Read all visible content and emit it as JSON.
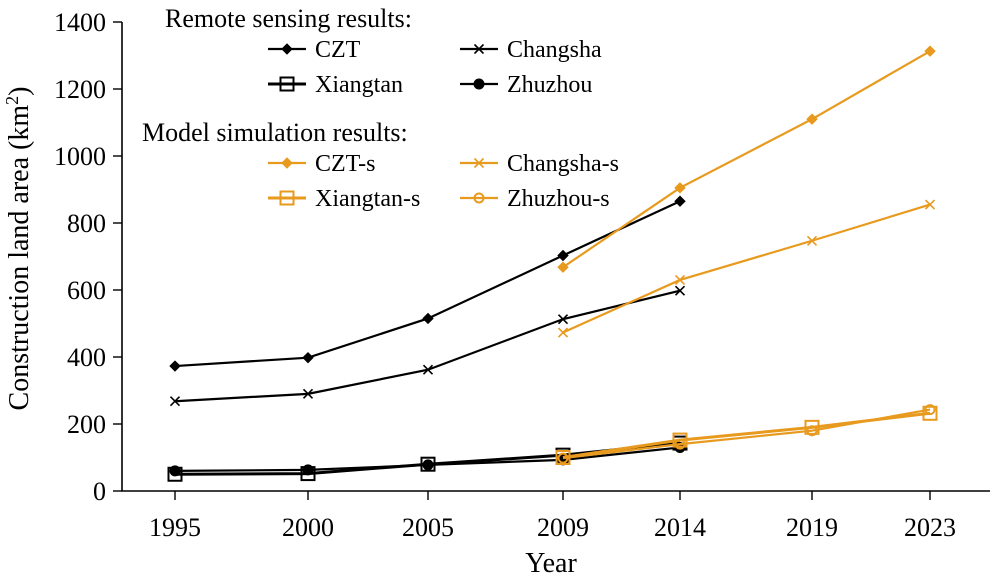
{
  "chart_data": {
    "type": "line",
    "xlabel": "Year",
    "ylabel": "Construction land area (km",
    "ylabel_sup": "2",
    "ylabel_close": ")",
    "ylim": [
      0,
      1400
    ],
    "yticks": [
      0,
      200,
      400,
      600,
      800,
      1000,
      1200,
      1400
    ],
    "categories": [
      "1995",
      "2000",
      "2005",
      "2009",
      "2014",
      "2019",
      "2023"
    ],
    "grid": false,
    "legend_position": "top-left",
    "legend_groups": [
      {
        "title": "Remote sensing results:",
        "series": [
          "CZT",
          "Changsha",
          "Xiangtan",
          "Zhuzhou"
        ]
      },
      {
        "title": "Model simulation results:",
        "series": [
          "CZT-s",
          "Changsha-s",
          "Xiangtan-s",
          "Zhuzhou-s"
        ]
      }
    ],
    "series": [
      {
        "name": "CZT",
        "color": "#000000",
        "marker": "diamond",
        "x": [
          "1995",
          "2000",
          "2005",
          "2009",
          "2014"
        ],
        "values": [
          373,
          398,
          515,
          703,
          865
        ]
      },
      {
        "name": "Changsha",
        "color": "#000000",
        "marker": "x",
        "x": [
          "1995",
          "2000",
          "2005",
          "2009",
          "2014"
        ],
        "values": [
          268,
          290,
          362,
          513,
          598
        ]
      },
      {
        "name": "Xiangtan",
        "color": "#000000",
        "marker": "square",
        "x": [
          "1995",
          "2000",
          "2005",
          "2009",
          "2014"
        ],
        "values": [
          50,
          52,
          80,
          107,
          143
        ]
      },
      {
        "name": "Zhuzhou",
        "color": "#000000",
        "marker": "circle",
        "x": [
          "1995",
          "2000",
          "2005",
          "2009",
          "2014"
        ],
        "values": [
          60,
          63,
          78,
          93,
          130
        ]
      },
      {
        "name": "CZT-s",
        "color": "#E89A1E",
        "marker": "diamond",
        "x": [
          "2009",
          "2014",
          "2019",
          "2023"
        ],
        "values": [
          668,
          905,
          1110,
          1313
        ]
      },
      {
        "name": "Changsha-s",
        "color": "#E89A1E",
        "marker": "x",
        "x": [
          "2009",
          "2014",
          "2019",
          "2023"
        ],
        "values": [
          473,
          630,
          747,
          855
        ]
      },
      {
        "name": "Xiangtan-s",
        "color": "#E89A1E",
        "marker": "square",
        "x": [
          "2009",
          "2014",
          "2019",
          "2023"
        ],
        "values": [
          100,
          152,
          190,
          232
        ]
      },
      {
        "name": "Zhuzhou-s",
        "color": "#E89A1E",
        "marker": "circle",
        "x": [
          "2009",
          "2014",
          "2019",
          "2023"
        ],
        "values": [
          98,
          140,
          180,
          243
        ]
      }
    ]
  }
}
